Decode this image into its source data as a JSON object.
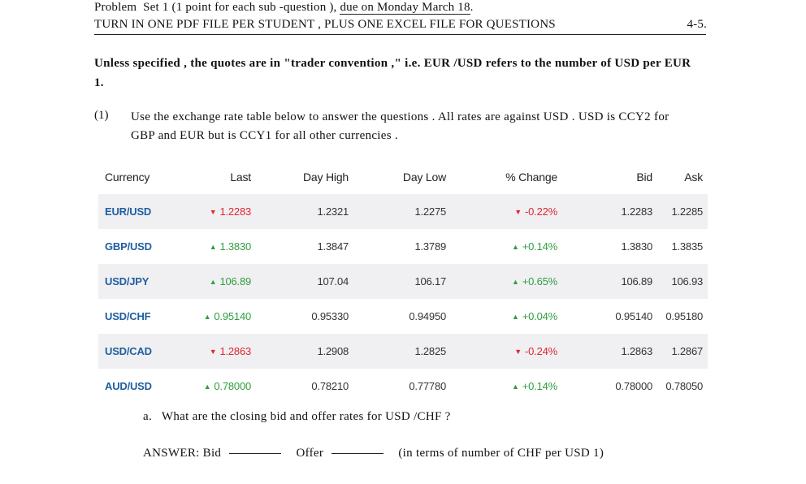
{
  "header": {
    "problem": "Problem",
    "set": "Set 1 (1 point for each sub -question ),",
    "due": "due on Monday March 18",
    "turn_in": "TURN IN ONE PDF FILE PER STUDENT , PLUS ONE EXCEL FILE FOR QUESTIONS",
    "questions_range": "4-5."
  },
  "convention_text": "Unless specified , the quotes are in \"trader convention ,\" i.e. EUR /USD refers to the number of USD per EUR 1.",
  "question1": {
    "number": "(1)",
    "text": "Use the exchange rate table below to answer the questions . All rates are against USD . USD is CCY2 for GBP and EUR but is CCY1 for all other currencies ."
  },
  "table": {
    "headers": [
      "Currency",
      "Last",
      "Day High",
      "Day Low",
      "% Change",
      "Bid",
      "Ask"
    ],
    "rows": [
      {
        "pair": "EUR/USD",
        "last": "1.2283",
        "high": "1.2321",
        "low": "1.2275",
        "change": "-0.22%",
        "bid": "1.2283",
        "ask": "1.2285",
        "dir": "down"
      },
      {
        "pair": "GBP/USD",
        "last": "1.3830",
        "high": "1.3847",
        "low": "1.3789",
        "change": "+0.14%",
        "bid": "1.3830",
        "ask": "1.3835",
        "dir": "up"
      },
      {
        "pair": "USD/JPY",
        "last": "106.89",
        "high": "107.04",
        "low": "106.17",
        "change": "+0.65%",
        "bid": "106.89",
        "ask": "106.93",
        "dir": "up"
      },
      {
        "pair": "USD/CHF",
        "last": "0.95140",
        "high": "0.95330",
        "low": "0.94950",
        "change": "+0.04%",
        "bid": "0.95140",
        "ask": "0.95180",
        "dir": "up"
      },
      {
        "pair": "USD/CAD",
        "last": "1.2863",
        "high": "1.2908",
        "low": "1.2825",
        "change": "-0.24%",
        "bid": "1.2863",
        "ask": "1.2867",
        "dir": "down"
      },
      {
        "pair": "AUD/USD",
        "last": "0.78000",
        "high": "0.78210",
        "low": "0.77780",
        "change": "+0.14%",
        "bid": "0.78000",
        "ask": "0.78050",
        "dir": "up"
      }
    ],
    "colors": {
      "pair": "#1f5fa0",
      "down": "#e0262e",
      "up": "#2e9e40",
      "stripe": "#f0f0f3"
    }
  },
  "sub_question_a": {
    "label": "a.",
    "text": "What are the closing bid and offer rates for USD /CHF ?"
  },
  "answer": {
    "prefix": "ANSWER: Bid",
    "offer_label": "Offer",
    "suffix": "(in terms of number of CHF per USD 1)"
  }
}
